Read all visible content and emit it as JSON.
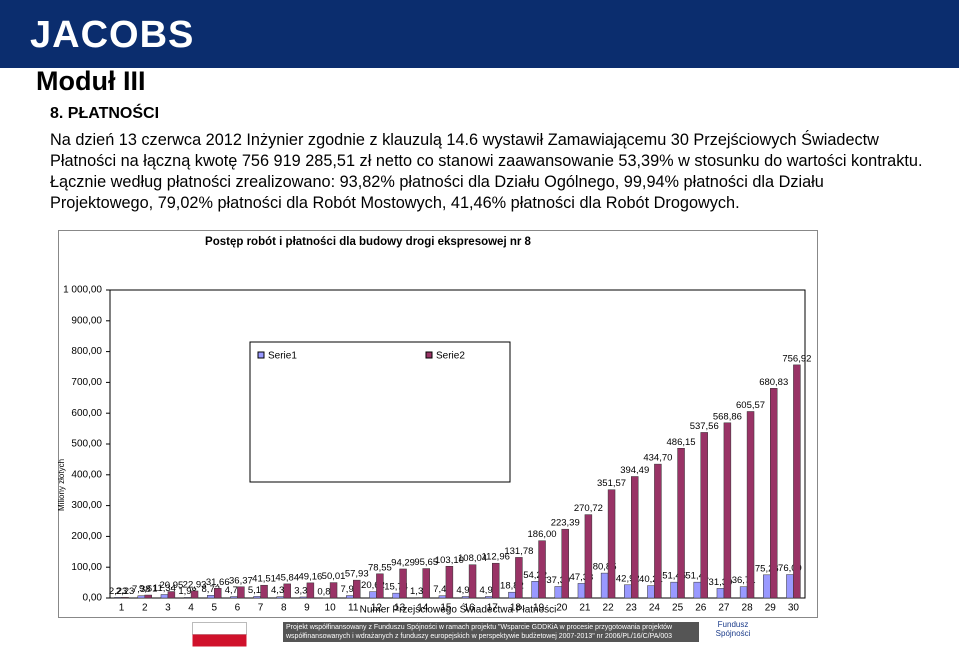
{
  "header": {
    "logo": "JACOBS",
    "title": "Moduł III",
    "section": "8. PŁATNOŚCI",
    "paragraph": "Na dzień 13 czerwca 2012 Inżynier zgodnie z klauzulą 14.6 wystawił Zamawiającemu 30 Przejściowych Świadectw Płatności na łączną kwotę 756 919 285,51 zł netto co stanowi zaawansowanie 53,39% w stosunku do wartości kontraktu. Łącznie według płatności zrealizowano: 93,82% płatności dla Działu Ogólnego, 99,94% płatności dla Działu Projektowego, 79,02% płatności dla Robót Mostowych, 41,46% płatności dla Robót Drogowych."
  },
  "chart_data": {
    "type": "bar",
    "title": "Postęp robót i płatności dla budowy drogi ekspresowej nr 8",
    "y_label": "Miliony złotych",
    "x_label": "Numer Przejściowego Świadectwa Płatności",
    "categories": [
      "1",
      "2",
      "3",
      "4",
      "5",
      "6",
      "7",
      "8",
      "9",
      "10",
      "11",
      "12",
      "13",
      "14",
      "15",
      "16",
      "17",
      "18",
      "19",
      "20",
      "21",
      "22",
      "23",
      "24",
      "25",
      "26",
      "27",
      "28",
      "29",
      "30"
    ],
    "series": [
      {
        "name": "Serie1",
        "color": "#9999ff",
        "values": [
          2.23,
          7.38,
          11.34,
          1.98,
          8.73,
          4.71,
          5.15,
          4.33,
          3.32,
          0.85,
          7.92,
          20.62,
          15.74,
          1.36,
          7.45,
          4.94,
          4.92,
          18.82,
          54.22,
          37.39,
          47.33,
          80.85,
          42.92,
          40.21,
          51.45,
          51.41,
          31.3,
          36.71,
          75.26,
          76.09
        ],
        "value_labels": [
          "2,23",
          "7,38",
          "11,34",
          "1,98",
          "8,73",
          "4,71",
          "5,15",
          "4,33",
          "3,32",
          "0,85",
          "7,92",
          "20,62",
          "15,74",
          "1,36",
          "7,45",
          "4,94",
          "4,92",
          "18,82",
          "54,22",
          "37,39",
          "47,33",
          "80,85",
          "42,92",
          "40,21",
          "51,45",
          "51,41",
          "31,30",
          "36,71",
          "75,26",
          "76,09"
        ]
      },
      {
        "name": "Serie2",
        "color": "#993366",
        "values": [
          2.23,
          9.61,
          20.95,
          22.93,
          31.66,
          36.37,
          41.51,
          45.84,
          49.16,
          50.01,
          57.93,
          78.55,
          94.29,
          95.65,
          103.1,
          108.04,
          112.96,
          131.78,
          186.0,
          223.39,
          270.72,
          351.57,
          394.49,
          434.7,
          486.15,
          537.56,
          568.86,
          605.57,
          680.83,
          756.92
        ],
        "value_labels": [
          "2,23",
          "9,61",
          "20,95",
          "22,93",
          "31,66",
          "36,37",
          "41,51",
          "45,84",
          "49,16",
          "50,01",
          "57,93",
          "78,55",
          "94,29",
          "95,65",
          "103,10",
          "108,04",
          "112,96",
          "131,78",
          "186,00",
          "223,39",
          "270,72",
          "351,57",
          "394,49",
          "434,70",
          "486,15",
          "537,56",
          "568,86",
          "605,57",
          "680,83",
          "756,92"
        ]
      }
    ],
    "ylim": [
      0,
      1000
    ],
    "yticks": [
      {
        "value": 0,
        "label": "0,00"
      },
      {
        "value": 100,
        "label": "100,00"
      },
      {
        "value": 200,
        "label": "200,00"
      },
      {
        "value": 300,
        "label": "300,00"
      },
      {
        "value": 400,
        "label": "400,00"
      },
      {
        "value": 500,
        "label": "500,00"
      },
      {
        "value": 600,
        "label": "600,00"
      },
      {
        "value": 700,
        "label": "700,00"
      },
      {
        "value": 800,
        "label": "800,00"
      },
      {
        "value": 900,
        "label": "900,00"
      },
      {
        "value": 1000,
        "label": "1 000,00"
      }
    ],
    "grid": false
  },
  "footer": {
    "text": "Projekt współfinansowany z Funduszu Spójności w ramach projektu \"Wsparcie GDDKiA w procesie przygotowania projektów współfinansowanych i wdrażanych z funduszy europejskich w perspektywie budżetowej 2007-2013\" nr 2006/PL/16/C/PA/003",
    "fund_logo": "Fundusz Spójności"
  }
}
